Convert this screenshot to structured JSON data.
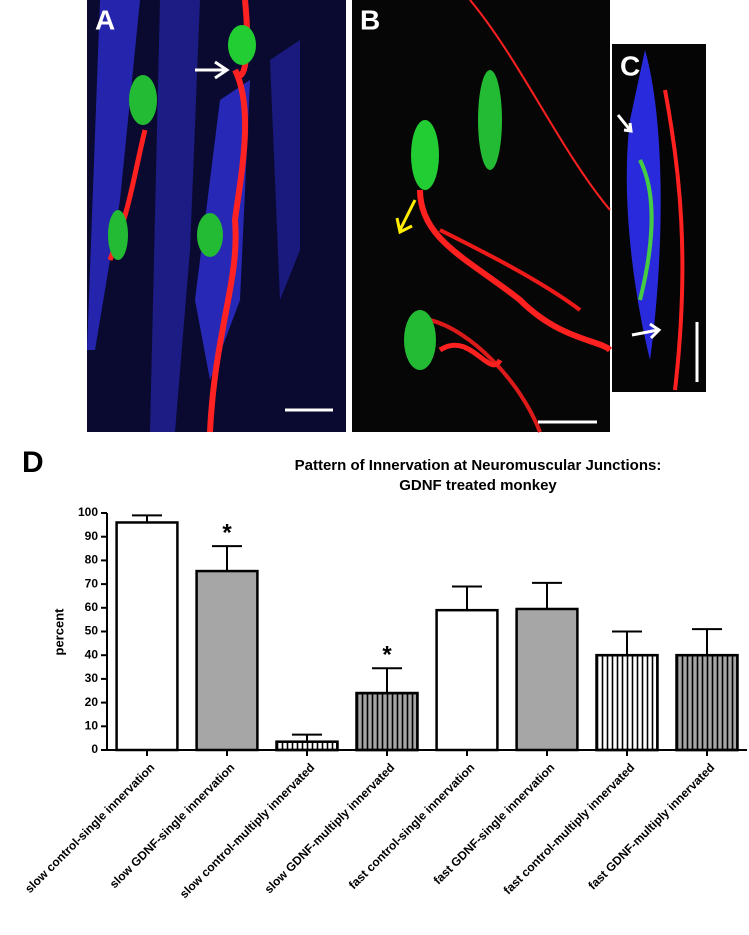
{
  "panel_labels": [
    "A",
    "B",
    "C",
    "D"
  ],
  "chart_data": {
    "type": "bar",
    "title": [
      "Pattern of Innervation at Neuromuscular Junctions:",
      "GDNF treated monkey"
    ],
    "y_label": "percent",
    "categories": [
      "slow control-single innervation",
      "slow GDNF-single innervation",
      "slow control-multiply innervated",
      "slow GDNF-multiply innervated",
      "fast control-single innervation",
      "fast GDNF-single innervation",
      "fast control-multiply innervated",
      "fast GDNF-multiply innervated"
    ],
    "values": [
      96,
      75.5,
      3.5,
      24,
      59,
      59.5,
      40,
      40
    ],
    "errors": [
      3,
      10.5,
      3,
      10.5,
      10,
      11,
      10,
      11
    ],
    "colors": [
      "#ffffff",
      "#a6a6a6",
      "#ffffff",
      "#a6a6a6",
      "#ffffff",
      "#a6a6a6",
      "#ffffff",
      "#a6a6a6"
    ],
    "hatched": [
      false,
      false,
      true,
      true,
      false,
      false,
      true,
      true
    ],
    "significance_markers": [
      null,
      "*",
      null,
      "*",
      null,
      null,
      null,
      null
    ],
    "ylim": [
      0,
      100
    ],
    "yticks": [
      0,
      10,
      20,
      30,
      40,
      50,
      60,
      70,
      80,
      90,
      100
    ],
    "grid": false
  }
}
